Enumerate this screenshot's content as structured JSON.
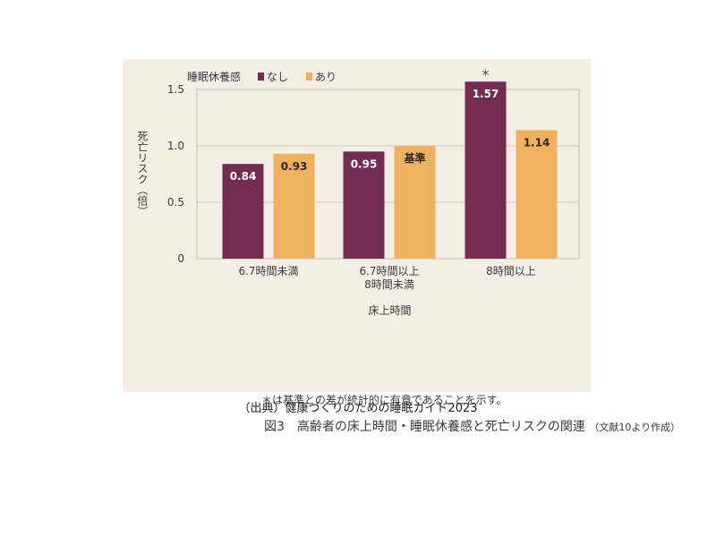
{
  "chart_data": {
    "type": "bar",
    "legend_title": "睡眠休養感",
    "series": [
      {
        "name": "なし",
        "color": "#722c52",
        "values": [
          0.84,
          0.95,
          1.57
        ]
      },
      {
        "name": "あり",
        "color": "#f0b15e",
        "values": [
          0.93,
          1.0,
          1.14
        ]
      }
    ],
    "categories": [
      [
        "6.7時間未満"
      ],
      [
        "6.7時間以上",
        "8時間未満"
      ],
      [
        "8時間以上"
      ]
    ],
    "data_labels": [
      [
        "0.84",
        "0.95",
        "1.57"
      ],
      [
        "0.93",
        "基準",
        "1.14"
      ]
    ],
    "asterisk_label": "＊",
    "xlabel": "床上時間",
    "ylabel": "死亡リスク（倍）",
    "yticks": [
      "0",
      "0.5",
      "1.0",
      "1.5"
    ],
    "ylim": [
      0,
      1.5
    ],
    "grid": true,
    "legend_position": "top-left"
  },
  "footnote": "＊は基準との差が統計的に有意であることを示す。",
  "caption": {
    "main": "図3　高齢者の床上時間・睡眠休養感と死亡リスクの関連",
    "note": "（文献10より作成）"
  },
  "source": "（出典）健康づくりのための睡眠ガイド2023"
}
